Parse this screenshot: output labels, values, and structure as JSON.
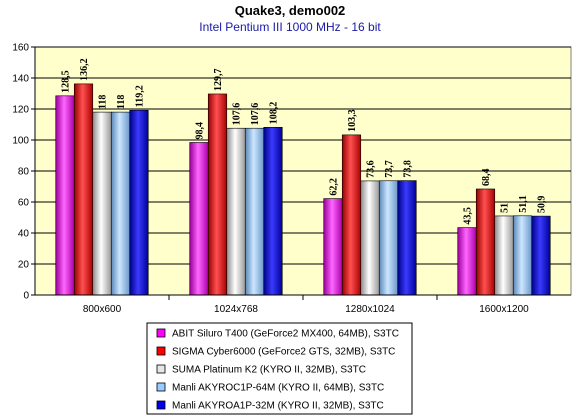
{
  "chart_data": {
    "type": "bar",
    "title": "Quake3, demo002",
    "subtitle": "Intel Pentium III 1000 MHz - 16 bit",
    "categories": [
      "800x600",
      "1024x768",
      "1280x1024",
      "1600x1200"
    ],
    "ylim": [
      0,
      160
    ],
    "yticks": [
      0,
      20,
      40,
      60,
      80,
      100,
      120,
      140,
      160
    ],
    "grid": true,
    "legend_position": "bottom",
    "series": [
      {
        "name": "ABIT Siluro T400 (GeForce2 MX400, 64MB), S3TC",
        "values": [
          128.5,
          98.4,
          62.2,
          43.5
        ],
        "labels": [
          "128,5",
          "98,4",
          "62,2",
          "43,5"
        ],
        "color": "#ff00ff"
      },
      {
        "name": "SIGMA Cyber6000 (GeForce2 GTS, 32MB), S3TC",
        "values": [
          136.2,
          129.7,
          103.3,
          68.4
        ],
        "labels": [
          "136,2",
          "129,7",
          "103,3",
          "68,4"
        ],
        "color": "#ff0000"
      },
      {
        "name": "SUMA Platinum K2 (KYRO II, 32MB), S3TC",
        "values": [
          118,
          107.6,
          73.6,
          51
        ],
        "labels": [
          "118",
          "107,6",
          "73,6",
          "51"
        ],
        "color": "#e6e6e6"
      },
      {
        "name": "Manli AKYROC1P-64M (KYRO II, 64MB), S3TC",
        "values": [
          118,
          107.6,
          73.7,
          51.1
        ],
        "labels": [
          "118",
          "107,6",
          "73,7",
          "51,1"
        ],
        "color": "#99ccff"
      },
      {
        "name": "Manli AKYROA1P-32M (KYRO II, 32MB), S3TC",
        "values": [
          119.2,
          108.2,
          73.8,
          50.9
        ],
        "labels": [
          "119,2",
          "108,2",
          "73,8",
          "50,9"
        ],
        "color": "#0000ee"
      }
    ]
  }
}
